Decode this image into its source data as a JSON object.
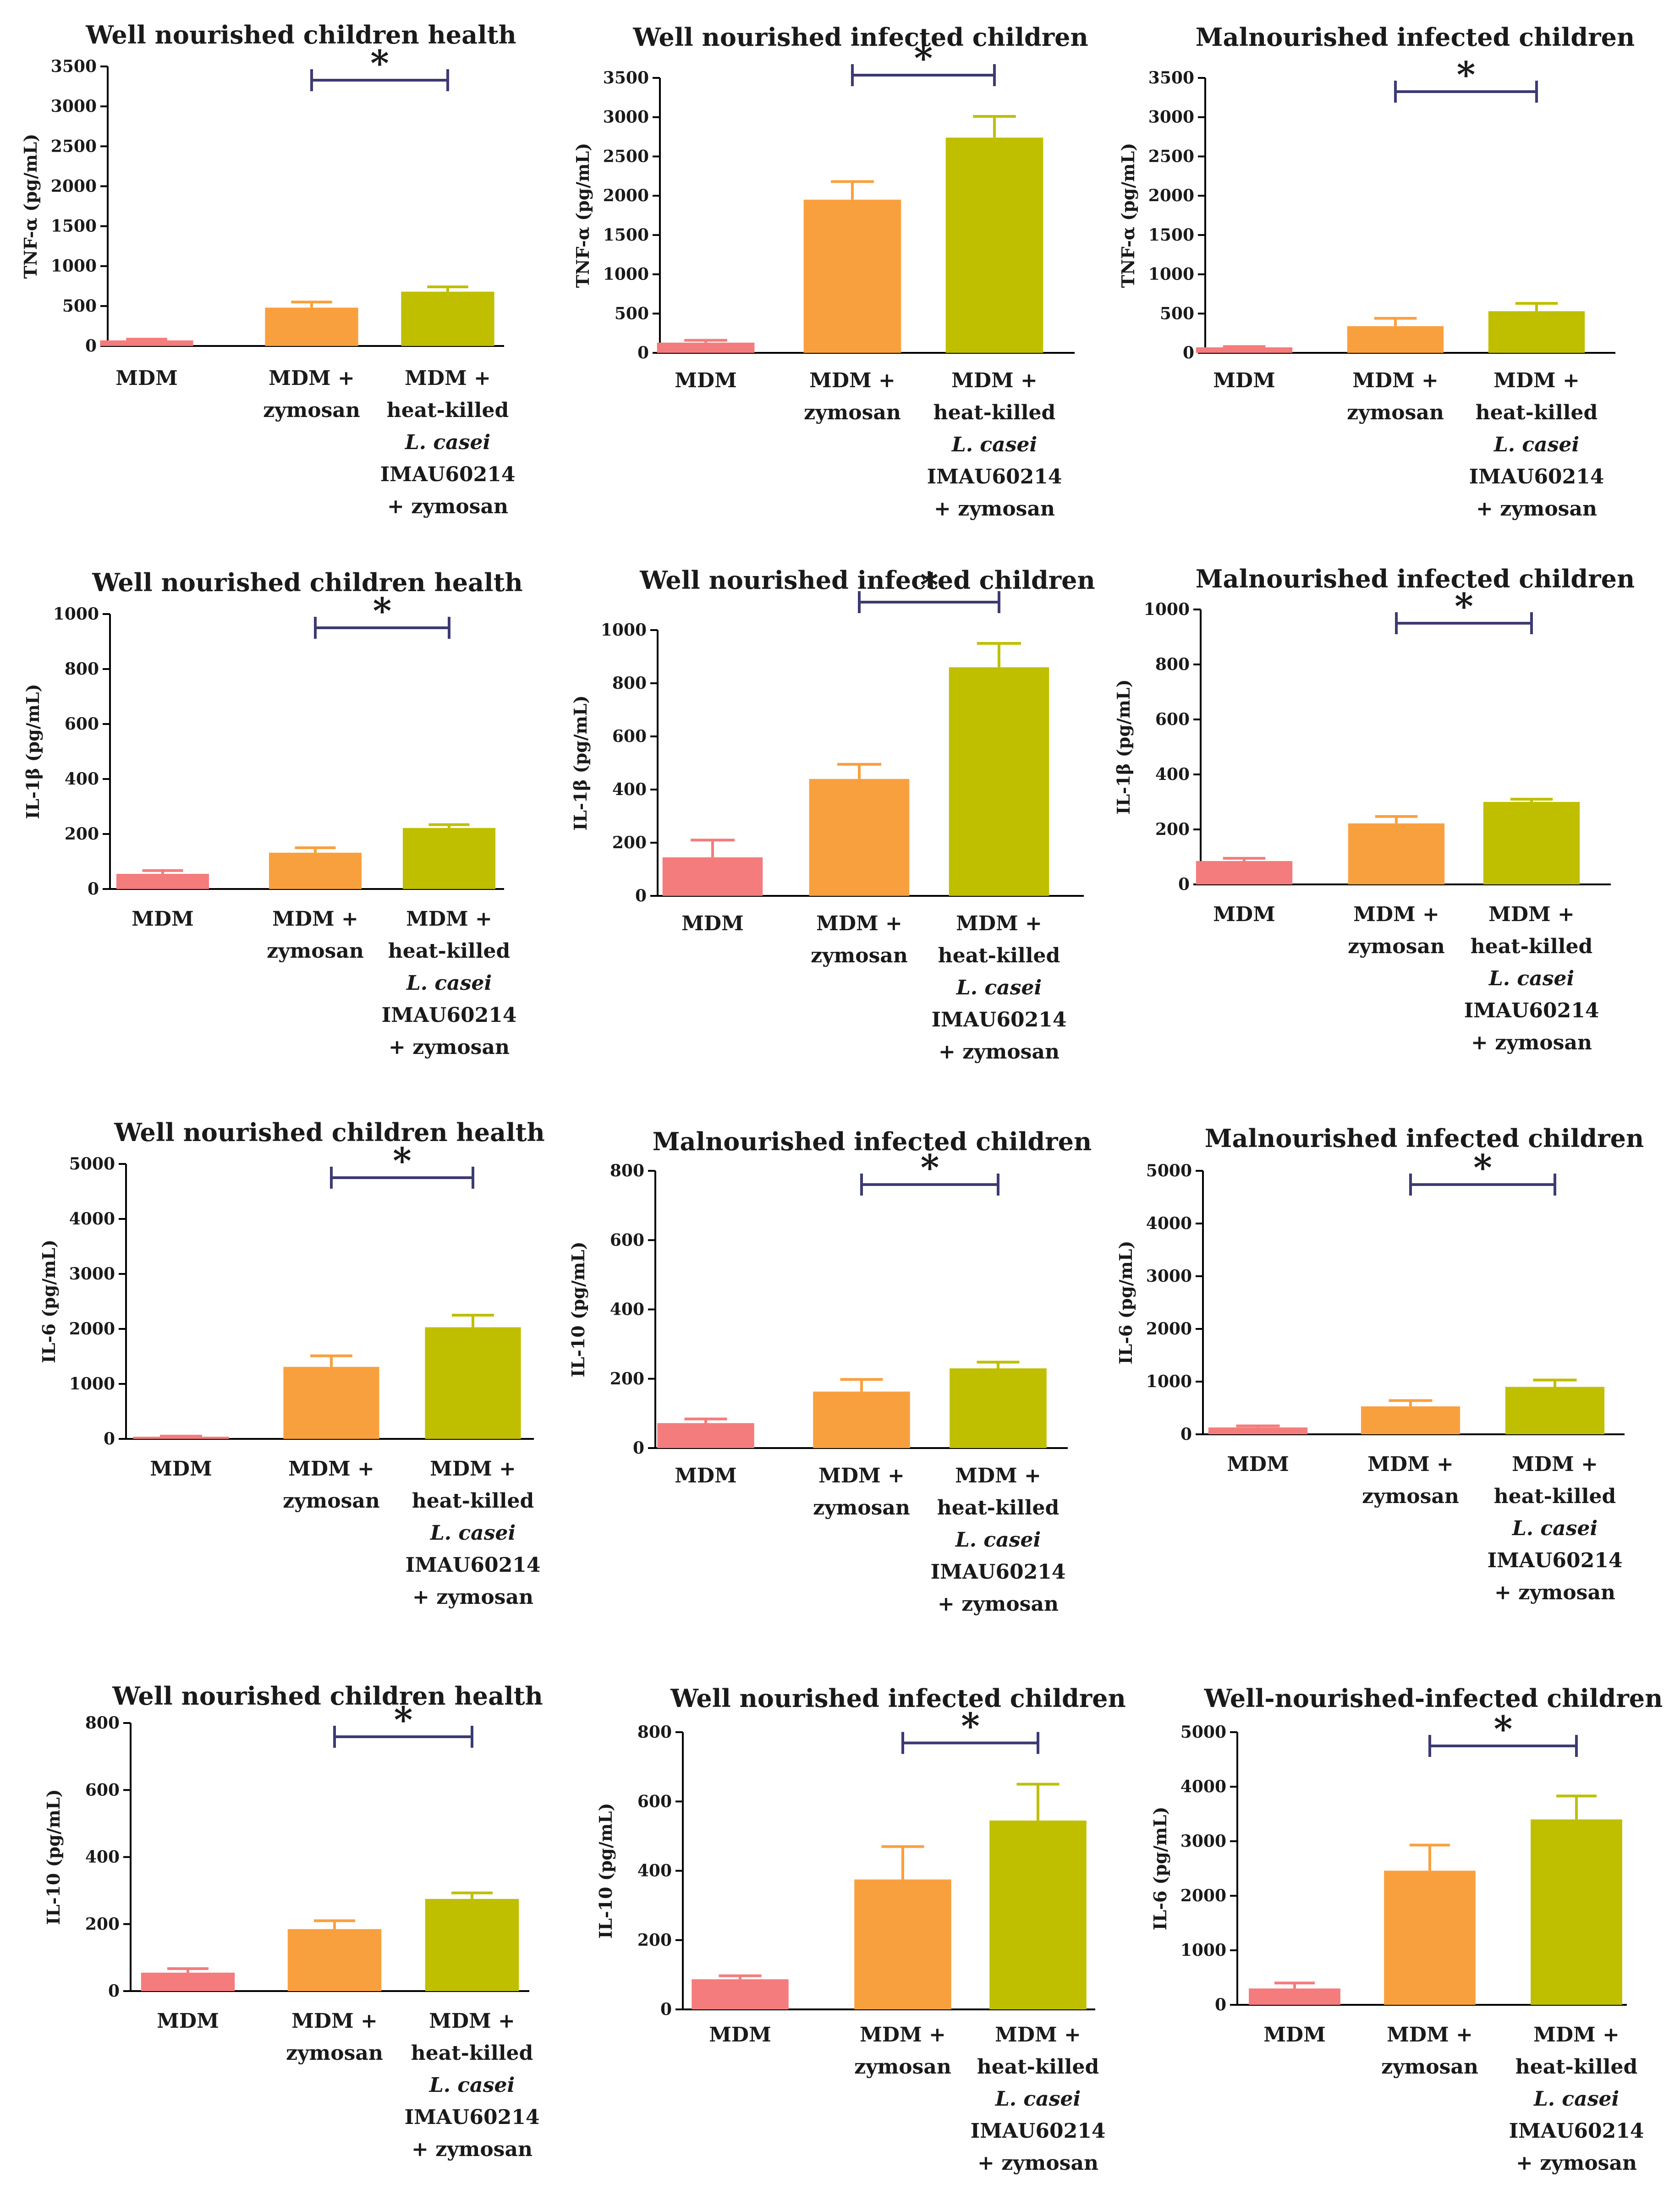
{
  "colors": {
    "mdm": "#f47c7c",
    "zymosan": "#f9a03e",
    "lc": "#bfbf00",
    "bracket": "#3d3a72"
  },
  "categories": [
    [
      "MDM"
    ],
    [
      "MDM +",
      "zymosan"
    ],
    [
      "MDM +",
      "heat-killed",
      "L. casei",
      "IMAU60214",
      "+ zymosan"
    ]
  ],
  "chart_data": [
    {
      "type": "bar",
      "title": "Well nourished children health",
      "ylabel": "TNF-α (pg/mL)",
      "ylim": [
        0,
        3500
      ],
      "ticks": [
        0,
        500,
        1000,
        1500,
        2000,
        2500,
        3000,
        3500
      ],
      "values": [
        70,
        480,
        680
      ],
      "errors": [
        15,
        70,
        60
      ],
      "sig": "*"
    },
    {
      "type": "bar",
      "title": "Well nourished infected children",
      "ylabel": "TNF-α (pg/mL)",
      "ylim": [
        0,
        3500
      ],
      "ticks": [
        0,
        500,
        1000,
        1500,
        2000,
        2500,
        3000,
        3500
      ],
      "values": [
        130,
        1950,
        2740
      ],
      "errors": [
        30,
        230,
        270
      ],
      "sig": "*"
    },
    {
      "type": "bar",
      "title": "Malnourished infected children",
      "ylabel": "TNF-α (pg/mL)",
      "ylim": [
        0,
        3500
      ],
      "ticks": [
        0,
        500,
        1000,
        1500,
        2000,
        2500,
        3000,
        3500
      ],
      "values": [
        70,
        340,
        530
      ],
      "errors": [
        10,
        100,
        100
      ],
      "sig": "*"
    },
    {
      "type": "bar",
      "title": "Well nourished children health",
      "ylabel": "IL-1β (pg/mL)",
      "ylim": [
        0,
        1000
      ],
      "ticks": [
        0,
        200,
        400,
        600,
        800,
        1000
      ],
      "values": [
        55,
        132,
        222
      ],
      "errors": [
        12,
        18,
        12
      ],
      "sig": "*"
    },
    {
      "type": "bar",
      "title": "Well nourished infected children",
      "ylabel": "IL-1β (pg/mL)",
      "ylim": [
        0,
        1000
      ],
      "ticks": [
        0,
        200,
        400,
        600,
        800,
        1000
      ],
      "values": [
        145,
        440,
        860
      ],
      "errors": [
        65,
        55,
        90
      ],
      "sig": "*"
    },
    {
      "type": "bar",
      "title": "Malnourished infected children",
      "ylabel": "IL-1β (pg/mL)",
      "ylim": [
        0,
        1000
      ],
      "ticks": [
        0,
        200,
        400,
        600,
        800,
        1000
      ],
      "values": [
        85,
        222,
        300
      ],
      "errors": [
        10,
        25,
        10
      ],
      "sig": "*"
    },
    {
      "type": "bar",
      "title": "Well nourished children health",
      "ylabel": "IL-6 (pg/mL)",
      "ylim": [
        0,
        5000
      ],
      "ticks": [
        0,
        1000,
        2000,
        3000,
        4000,
        5000
      ],
      "values": [
        40,
        1310,
        2030
      ],
      "errors": [
        10,
        200,
        220
      ],
      "sig": "*"
    },
    {
      "type": "bar",
      "title": "Malnourished infected children",
      "ylabel": "IL-10 (pg/mL)",
      "ylim": [
        0,
        800
      ],
      "ticks": [
        0,
        200,
        400,
        600,
        800
      ],
      "values": [
        72,
        163,
        230
      ],
      "errors": [
        12,
        35,
        18
      ],
      "sig": "*"
    },
    {
      "type": "bar",
      "title": "Malnourished infected children",
      "ylabel": "IL-6 (pg/mL)",
      "ylim": [
        0,
        5000
      ],
      "ticks": [
        0,
        1000,
        2000,
        3000,
        4000,
        5000
      ],
      "values": [
        130,
        530,
        900
      ],
      "errors": [
        30,
        110,
        130
      ],
      "sig": "*"
    },
    {
      "type": "bar",
      "title": "Well nourished children health",
      "ylabel": "IL-10 (pg/mL)",
      "ylim": [
        0,
        800
      ],
      "ticks": [
        0,
        200,
        400,
        600,
        800
      ],
      "values": [
        55,
        185,
        275
      ],
      "errors": [
        12,
        25,
        18
      ],
      "sig": "*"
    },
    {
      "type": "bar",
      "title": "Well nourished infected children",
      "ylabel": "IL-10 (pg/mL)",
      "ylim": [
        0,
        800
      ],
      "ticks": [
        0,
        200,
        400,
        600,
        800
      ],
      "values": [
        87,
        375,
        545
      ],
      "errors": [
        10,
        95,
        105
      ],
      "sig": "*"
    },
    {
      "type": "bar",
      "title": "Well-nourished-infected children",
      "ylabel": "IL-6 (pg/mL)",
      "ylim": [
        0,
        5000
      ],
      "ticks": [
        0,
        1000,
        2000,
        3000,
        4000,
        5000
      ],
      "values": [
        300,
        2460,
        3400
      ],
      "errors": [
        100,
        470,
        430
      ],
      "sig": "*"
    }
  ]
}
